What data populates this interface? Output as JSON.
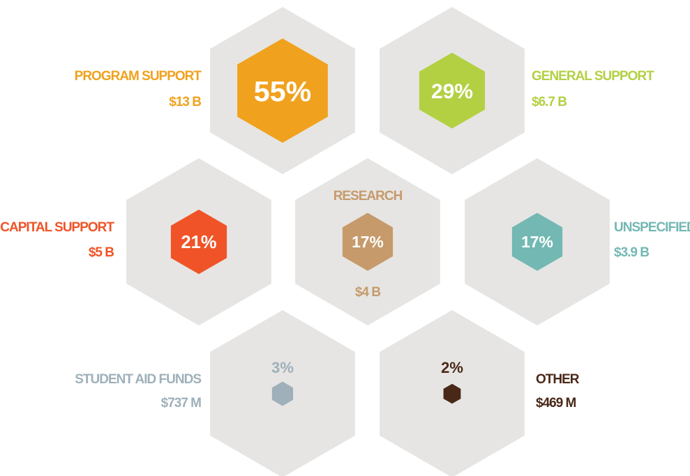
{
  "chart_data": {
    "type": "hexagon",
    "categories": [
      "PROGRAM SUPPORT",
      "GENERAL SUPPORT",
      "CAPITAL SUPPORT",
      "RESEARCH",
      "UNSPECIFIED",
      "STUDENT AID FUNDS",
      "OTHER"
    ],
    "values": [
      55,
      29,
      21,
      17,
      17,
      3,
      2
    ],
    "value_labels": [
      "55%",
      "29%",
      "21%",
      "17%",
      "17%",
      "3%",
      "2%"
    ],
    "amounts": [
      "$13 B",
      "$6.7 B",
      "$5 B",
      "$4 B",
      "$3.9 B",
      "$737 M",
      "$469 M"
    ],
    "colors": [
      "#f0a21e",
      "#b3d043",
      "#f05327",
      "#c69a6b",
      "#73b8b3",
      "#9fb0ba",
      "#4a2818"
    ]
  }
}
